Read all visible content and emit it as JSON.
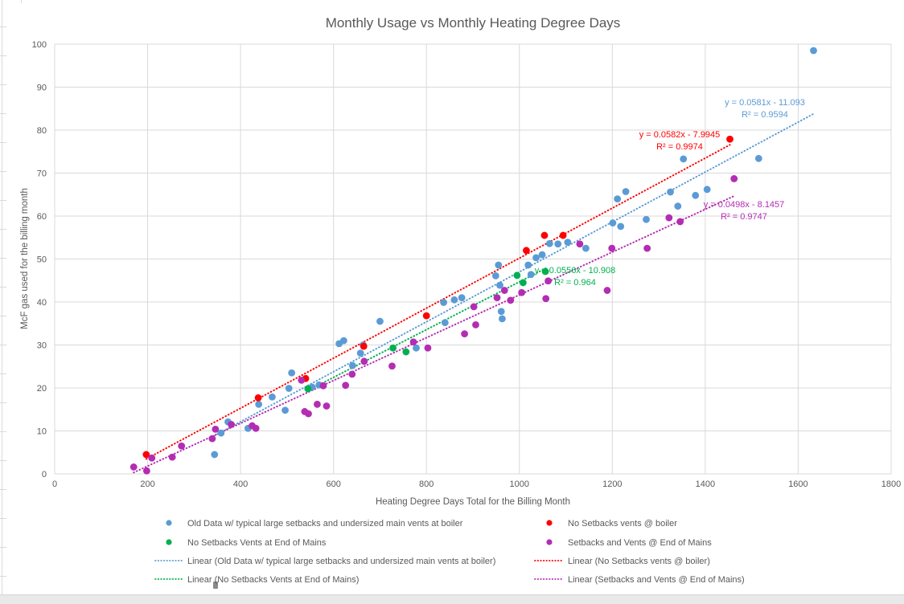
{
  "chart_data": {
    "type": "scatter",
    "title": "Monthly Usage vs Monthly Heating Degree Days",
    "xlabel": "Heating Degree Days Total for the Billing Month",
    "ylabel": "McF gas used for the billing month",
    "xlim": [
      0,
      1800
    ],
    "ylim": [
      0,
      100
    ],
    "xtick_step": 200,
    "ytick_step": 10,
    "grid": true,
    "gridline_color": "#d9d9d9",
    "text_color": "#595959",
    "legend_position": "bottom-two-columns",
    "series": [
      {
        "name": "Old Data w/ typical large setbacks and undersized main vents at boiler",
        "color": "#5B9BD5",
        "marker": "circle",
        "points": [
          [
            344,
            4.5
          ],
          [
            358,
            9.5
          ],
          [
            373,
            12.1
          ],
          [
            416,
            10.6
          ],
          [
            439,
            16.2
          ],
          [
            468,
            17.9
          ],
          [
            496,
            14.8
          ],
          [
            504,
            19.9
          ],
          [
            510,
            23.5
          ],
          [
            554,
            20.2
          ],
          [
            569,
            20.7
          ],
          [
            612,
            30.3
          ],
          [
            622,
            31
          ],
          [
            641,
            25.2
          ],
          [
            658,
            28.1
          ],
          [
            664,
            30
          ],
          [
            700,
            35.5
          ],
          [
            778,
            29.3
          ],
          [
            837,
            39.9
          ],
          [
            840,
            35.2
          ],
          [
            860,
            40.5
          ],
          [
            876,
            41
          ],
          [
            949,
            46.1
          ],
          [
            955,
            48.6
          ],
          [
            958,
            43.9
          ],
          [
            961,
            37.8
          ],
          [
            963,
            36.1
          ],
          [
            1019,
            48.6
          ],
          [
            1025,
            46.4
          ],
          [
            1036,
            50.3
          ],
          [
            1049,
            51
          ],
          [
            1065,
            53.6
          ],
          [
            1083,
            53.5
          ],
          [
            1104,
            53.9
          ],
          [
            1143,
            52.5
          ],
          [
            1201,
            58.4
          ],
          [
            1211,
            64
          ],
          [
            1218,
            57.6
          ],
          [
            1229,
            65.7
          ],
          [
            1273,
            59.2
          ],
          [
            1325,
            65.6
          ],
          [
            1341,
            62.3
          ],
          [
            1353,
            73.3
          ],
          [
            1379,
            64.8
          ],
          [
            1404,
            66.2
          ],
          [
            1515,
            73.4
          ],
          [
            1633,
            98.5
          ]
        ],
        "trendline": {
          "label": "y = 0.0581x - 11.093",
          "r2_label": "R² = 0.9594",
          "slope": 0.0581,
          "intercept": -11.093,
          "r2": 0.9594,
          "x_range": [
            344,
            1635
          ],
          "label_xy": [
            951,
            131
          ]
        }
      },
      {
        "name": "No Setbacks vents @ boiler",
        "color": "#FF0000",
        "marker": "circle",
        "points": [
          [
            197,
            4.5
          ],
          [
            438,
            17.7
          ],
          [
            540,
            22.2
          ],
          [
            665,
            29.7
          ],
          [
            800,
            36.8
          ],
          [
            1015,
            52
          ],
          [
            1054,
            55.5
          ],
          [
            1094,
            55.5
          ],
          [
            1453,
            77.9
          ]
        ],
        "trendline": {
          "label": "y = 0.0582x - 7.9945",
          "r2_label": "R² = 0.9974",
          "slope": 0.0582,
          "intercept": -7.9945,
          "r2": 0.9974,
          "x_range": [
            197,
            1453
          ],
          "label_xy": [
            845,
            171
          ]
        }
      },
      {
        "name": "No Setbacks Vents at End of Mains",
        "color": "#00B050",
        "marker": "circle",
        "points": [
          [
            545,
            19.8
          ],
          [
            728,
            29.3
          ],
          [
            756,
            28.4
          ],
          [
            995,
            46.2
          ],
          [
            1008,
            44.5
          ],
          [
            1056,
            47.1
          ]
        ],
        "trendline": {
          "label": "y = 0.0556x - 10.908",
          "r2_label": "R² = 0.964",
          "slope": 0.0556,
          "intercept": -10.908,
          "r2": 0.964,
          "x_range": [
            545,
            1059
          ],
          "label_xy": [
            715,
            340
          ]
        }
      },
      {
        "name": "Setbacks and Vents @ End of Mains",
        "color": "#B32DB3",
        "marker": "circle",
        "points": [
          [
            170,
            1.6
          ],
          [
            198,
            0.7
          ],
          [
            209,
            3.7
          ],
          [
            253,
            3.9
          ],
          [
            273,
            6.5
          ],
          [
            339,
            8.2
          ],
          [
            346,
            10.4
          ],
          [
            380,
            11.5
          ],
          [
            425,
            11.2
          ],
          [
            433,
            10.6
          ],
          [
            531,
            21.8
          ],
          [
            538,
            14.5
          ],
          [
            546,
            14
          ],
          [
            565,
            16.2
          ],
          [
            578,
            20.5
          ],
          [
            585,
            15.8
          ],
          [
            626,
            20.6
          ],
          [
            640,
            23.2
          ],
          [
            666,
            26.2
          ],
          [
            726,
            25.1
          ],
          [
            772,
            30.7
          ],
          [
            803,
            29.3
          ],
          [
            882,
            32.6
          ],
          [
            902,
            38.9
          ],
          [
            906,
            34.7
          ],
          [
            952,
            41
          ],
          [
            968,
            42.7
          ],
          [
            981,
            40.4
          ],
          [
            1005,
            42.2
          ],
          [
            1057,
            40.8
          ],
          [
            1062,
            44.9
          ],
          [
            1130,
            53.5
          ],
          [
            1189,
            42.7
          ],
          [
            1199,
            52.5
          ],
          [
            1275,
            52.5
          ],
          [
            1322,
            59.6
          ],
          [
            1346,
            58.7
          ],
          [
            1462,
            68.7
          ]
        ],
        "trendline": {
          "label": "y = 0.0498x - 8.1457",
          "r2_label": "R² = 0.9747",
          "slope": 0.0498,
          "intercept": -8.1457,
          "r2": 0.9747,
          "x_range": [
            170,
            1462
          ],
          "label_xy": [
            925,
            258
          ]
        }
      }
    ],
    "legend": {
      "columns": [
        {
          "items": [
            {
              "type": "marker",
              "series": 0,
              "label": "Old Data w/ typical large setbacks and undersized main vents at boiler"
            },
            {
              "type": "marker",
              "series": 2,
              "label": "No Setbacks Vents at End of Mains"
            },
            {
              "type": "line",
              "series": 0,
              "label": "Linear (Old Data w/ typical large setbacks and undersized main vents at boiler)"
            },
            {
              "type": "line",
              "series": 2,
              "label": "Linear (No Setbacks Vents at End of Mains)"
            }
          ]
        },
        {
          "items": [
            {
              "type": "marker",
              "series": 1,
              "label": "No Setbacks vents @ boiler"
            },
            {
              "type": "marker",
              "series": 3,
              "label": "Setbacks and Vents @ End of Mains"
            },
            {
              "type": "line",
              "series": 1,
              "label": "Linear (No Setbacks vents @ boiler)"
            },
            {
              "type": "line",
              "series": 3,
              "label": "Linear (Setbacks and Vents @ End of Mains)"
            }
          ]
        }
      ]
    }
  }
}
